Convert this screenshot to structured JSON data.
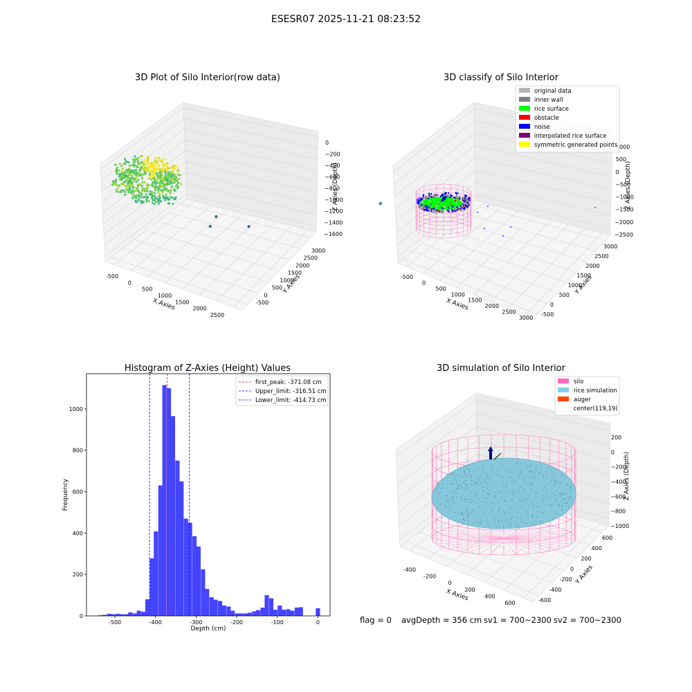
{
  "figure": {
    "suptitle": "ESESR07 2025-11-21 08:23:52",
    "footer": {
      "flag": "flag = 0",
      "avg_depth": "avgDepth = 356 cm",
      "sv1": "sv1 = 700~2300",
      "sv2": "sv2 = 700~2300"
    }
  },
  "chart_data": [
    {
      "type": "scatter",
      "projection": "3d",
      "title": "3D Plot of Silo Interior(row data)",
      "xlabel": "X Axies",
      "ylabel": "Y Axies",
      "zlabel": "Z Axies (Depth)",
      "x_ticks": [
        "-500",
        "0",
        "500",
        "1000",
        "1500",
        "2000",
        "2500"
      ],
      "y_ticks": [
        "-500",
        "0",
        "500",
        "1000",
        "1500",
        "2000",
        "2500",
        "3000"
      ],
      "z_ticks": [
        "0",
        "−200",
        "−400",
        "−600",
        "−800",
        "−1000",
        "−1200",
        "−1400",
        "−1600"
      ],
      "points_colormap": "viridis",
      "outlier_points": [
        {
          "x": 900,
          "y": 400,
          "z": -900
        },
        {
          "x": 1300,
          "y": 900,
          "z": -800
        },
        {
          "x": 1200,
          "y": 300,
          "z": -1300
        },
        {
          "x": 2400,
          "y": 2800,
          "z": -900
        }
      ]
    },
    {
      "type": "scatter",
      "projection": "3d",
      "title": "3D classify of Silo Interior",
      "xlabel": "X Axies",
      "ylabel": "Y Axies",
      "zlabel": "Z Axies (Depth)",
      "x_ticks": [
        "-500",
        "0",
        "500",
        "1000",
        "1500",
        "2000",
        "2500",
        "3000"
      ],
      "y_ticks": [
        "-500",
        "0",
        "500",
        "1000",
        "1500",
        "2000",
        "2500",
        "3000"
      ],
      "z_ticks": [
        "1000",
        "500",
        "0",
        "−500",
        "−1000",
        "−1500",
        "−2000",
        "−2500"
      ],
      "legend": [
        {
          "label": "original data",
          "color": "#b4b4b4"
        },
        {
          "label": "inner wall",
          "color": "#808080"
        },
        {
          "label": "rice surface",
          "color": "#00ff00"
        },
        {
          "label": "obstacle",
          "color": "#ff0000"
        },
        {
          "label": "noise",
          "color": "#0000ff"
        },
        {
          "label": "interpolated rice surface",
          "color": "#800080"
        },
        {
          "label": "symmetric generated points",
          "color": "#ffff00"
        }
      ],
      "legend_position": "top-right"
    },
    {
      "type": "bar",
      "title": "Histogram of Z-Axies (Height) Values",
      "xlabel": "Depth (cm)",
      "ylabel": "Frequency",
      "xlim": [
        -570,
        30
      ],
      "ylim": [
        0,
        1170
      ],
      "x_ticks": [
        -500,
        -400,
        -300,
        -200,
        -100,
        0
      ],
      "y_ticks": [
        0,
        200,
        400,
        600,
        800,
        1000
      ],
      "bin_width": 10.5,
      "bins": [
        {
          "x": -535,
          "v": 3
        },
        {
          "x": -525,
          "v": 5
        },
        {
          "x": -514,
          "v": 10
        },
        {
          "x": -504,
          "v": 8
        },
        {
          "x": -493,
          "v": 10
        },
        {
          "x": -483,
          "v": 8
        },
        {
          "x": -472,
          "v": 8
        },
        {
          "x": -462,
          "v": 17
        },
        {
          "x": -451,
          "v": 12
        },
        {
          "x": -441,
          "v": 25
        },
        {
          "x": -430,
          "v": 20
        },
        {
          "x": -420,
          "v": 80
        },
        {
          "x": -409,
          "v": 278
        },
        {
          "x": -399,
          "v": 408
        },
        {
          "x": -388,
          "v": 630
        },
        {
          "x": -378,
          "v": 1115
        },
        {
          "x": -367,
          "v": 1100
        },
        {
          "x": -357,
          "v": 965
        },
        {
          "x": -346,
          "v": 750
        },
        {
          "x": -336,
          "v": 650
        },
        {
          "x": -325,
          "v": 470
        },
        {
          "x": -315,
          "v": 450
        },
        {
          "x": -304,
          "v": 385
        },
        {
          "x": -294,
          "v": 335
        },
        {
          "x": -283,
          "v": 225
        },
        {
          "x": -273,
          "v": 130
        },
        {
          "x": -262,
          "v": 90
        },
        {
          "x": -252,
          "v": 78
        },
        {
          "x": -241,
          "v": 72
        },
        {
          "x": -231,
          "v": 50
        },
        {
          "x": -220,
          "v": 45
        },
        {
          "x": -210,
          "v": 25
        },
        {
          "x": -199,
          "v": 12
        },
        {
          "x": -189,
          "v": 12
        },
        {
          "x": -178,
          "v": 12
        },
        {
          "x": -168,
          "v": 15
        },
        {
          "x": -157,
          "v": 22
        },
        {
          "x": -147,
          "v": 28
        },
        {
          "x": -136,
          "v": 40
        },
        {
          "x": -126,
          "v": 100
        },
        {
          "x": -115,
          "v": 85
        },
        {
          "x": -105,
          "v": 30
        },
        {
          "x": -94,
          "v": 50
        },
        {
          "x": -84,
          "v": 30
        },
        {
          "x": -73,
          "v": 32
        },
        {
          "x": -63,
          "v": 25
        },
        {
          "x": -52,
          "v": 40
        },
        {
          "x": -42,
          "v": 42
        },
        {
          "x": 0,
          "v": 37
        }
      ],
      "bar_color": "#4545ff",
      "vlines": [
        {
          "label": "first_peak: -371.08 cm",
          "x": -371.08,
          "color": "#ff0000"
        },
        {
          "label": "Upper_limit: -316.51 cm",
          "x": -316.51,
          "color": "#0000ff"
        },
        {
          "label": "Lower_limit: -414.73 cm",
          "x": -414.73,
          "color": "#0000ff"
        }
      ],
      "legend_position": "top-right"
    },
    {
      "type": "surface",
      "projection": "3d",
      "title": "3D simulation of Silo Interior",
      "xlabel": "X Axies",
      "ylabel": "Y Axies",
      "zlabel": "Z Axies (Depth)",
      "x_ticks": [
        "-400",
        "-200",
        "0",
        "200",
        "400",
        "600"
      ],
      "y_ticks": [
        "-600",
        "-400",
        "-200",
        "0",
        "200",
        "400",
        "600"
      ],
      "z_ticks": [
        "200",
        "0",
        "−200",
        "−400",
        "−600",
        "−800",
        "−1000"
      ],
      "legend": [
        {
          "label": "silo",
          "color": "#ff69b4"
        },
        {
          "label": "rice simulation",
          "color": "#87ceeb"
        },
        {
          "label": "auger",
          "color": "#ff4500"
        },
        {
          "label": "center(119,19)",
          "color": "#ffffff"
        }
      ],
      "legend_position": "top-right"
    }
  ]
}
